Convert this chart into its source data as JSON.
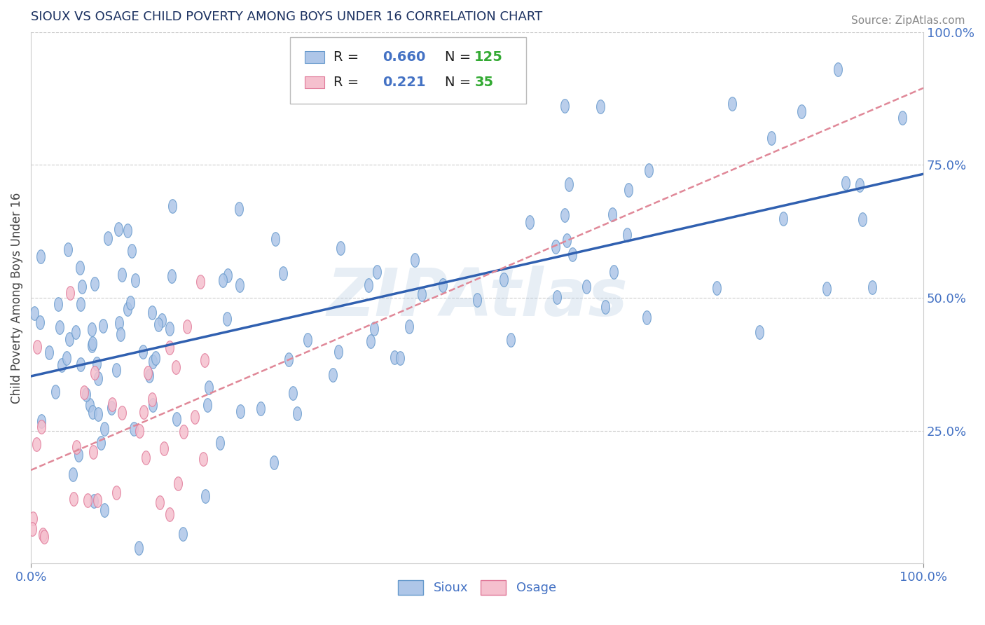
{
  "title": "SIOUX VS OSAGE CHILD POVERTY AMONG BOYS UNDER 16 CORRELATION CHART",
  "source_text": "Source: ZipAtlas.com",
  "ylabel": "Child Poverty Among Boys Under 16",
  "watermark": "ZIPAtlas",
  "sioux_R": 0.66,
  "sioux_N": 125,
  "osage_R": 0.221,
  "osage_N": 35,
  "sioux_color": "#aec6e8",
  "sioux_edge_color": "#6699cc",
  "osage_color": "#f5c0ce",
  "osage_edge_color": "#e07898",
  "blue_line_color": "#3060b0",
  "pink_line_color": "#e08898",
  "title_color": "#1a3060",
  "axis_label_color": "#4472c4",
  "legend_R_color": "#4472c4",
  "legend_N_color": "#33aa33",
  "background_color": "#ffffff",
  "grid_color": "#cccccc",
  "right_ytick_labels": [
    "25.0%",
    "50.0%",
    "75.0%",
    "100.0%"
  ],
  "right_ytick_positions": [
    0.25,
    0.5,
    0.75,
    1.0
  ]
}
